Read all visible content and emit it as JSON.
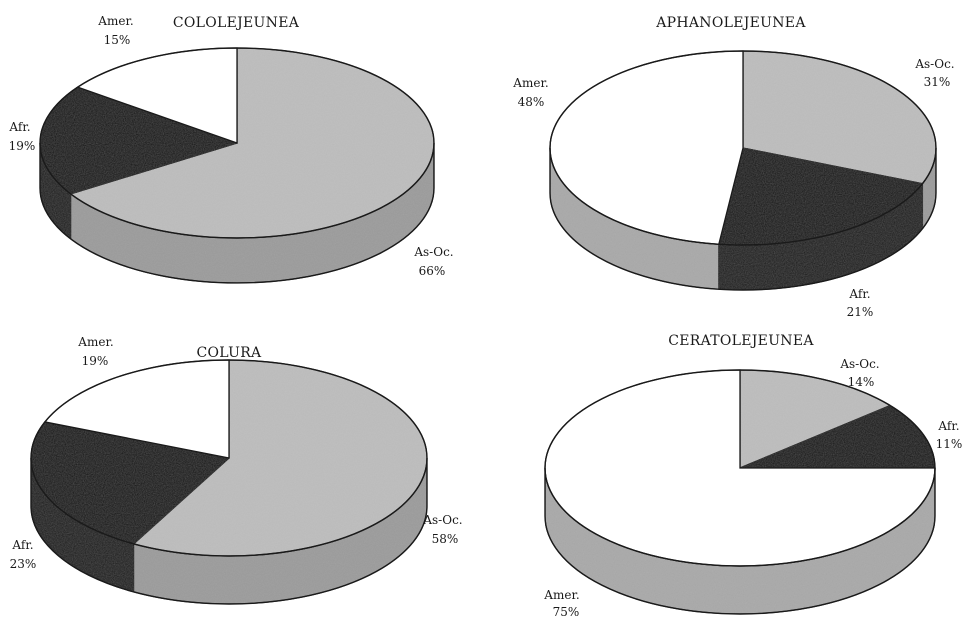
{
  "colors": {
    "As-Oc.": "#bdbdbd",
    "Afr.": "#141414",
    "Amer.": "#ffffff",
    "outline": "#1a1a1a"
  },
  "chart_data": [
    {
      "type": "pie",
      "title": "COLOLEJEUNEA",
      "slices": [
        {
          "label": "As-Oc.",
          "value": 66
        },
        {
          "label": "Afr.",
          "value": 19
        },
        {
          "label": "Amer.",
          "value": 15
        }
      ],
      "value_format": "{v}%"
    },
    {
      "type": "pie",
      "title": "APHANOLEJEUNEA",
      "slices": [
        {
          "label": "As-Oc.",
          "value": 31
        },
        {
          "label": "Afr.",
          "value": 21
        },
        {
          "label": "Amer.",
          "value": 48
        }
      ],
      "value_format": "{v}%"
    },
    {
      "type": "pie",
      "title": "COLURA",
      "slices": [
        {
          "label": "As-Oc.",
          "value": 58
        },
        {
          "label": "Afr.",
          "value": 23
        },
        {
          "label": "Amer.",
          "value": 19
        }
      ],
      "value_format": "{v}%"
    },
    {
      "type": "pie",
      "title": "CERATOLEJEUNEA",
      "slices": [
        {
          "label": "As-Oc.",
          "value": 14
        },
        {
          "label": "Afr.",
          "value": 11
        },
        {
          "label": "Amer.",
          "value": 75
        }
      ],
      "value_format": "{v}%"
    }
  ]
}
